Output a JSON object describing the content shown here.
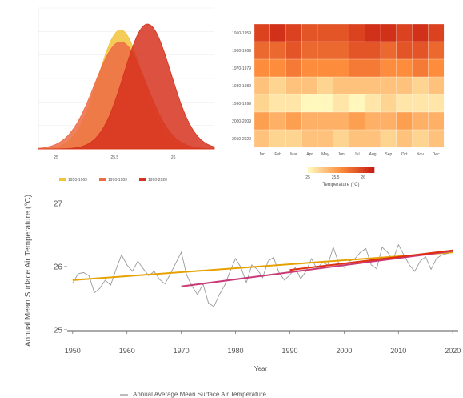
{
  "colors": {
    "low": "#fff7bc",
    "mid": "#fd8d3c",
    "high": "#c81d12",
    "trend_primary": "#e6a100",
    "trend_secondary": "#c83a78",
    "trend_recent": "#e03010",
    "series_line": "#9a9a9a"
  },
  "chart_data": [
    {
      "type": "area",
      "subtype": "density",
      "series": [
        {
          "name": "1950-1969",
          "color": "#f2c43b",
          "mean": 25.55,
          "sd": 0.19,
          "peak": 1.0
        },
        {
          "name": "1970-1989",
          "color": "#ec6b45",
          "mean": 25.55,
          "sd": 0.22,
          "peak": 0.9
        },
        {
          "name": "1990-2020",
          "color": "#d6321d",
          "mean": 25.78,
          "sd": 0.2,
          "peak": 1.05
        }
      ],
      "xlim": [
        24.85,
        26.35
      ],
      "x_ticks": [
        25,
        25.5,
        26
      ],
      "legend": "bottom"
    },
    {
      "type": "heatmap",
      "rows": [
        "1950-1959",
        "1960-1969",
        "1970-1979",
        "1980-1989",
        "1990-1999",
        "2000-2009",
        "2010-2020"
      ],
      "columns": [
        "Jan",
        "Feb",
        "Mar",
        "Apr",
        "May",
        "Jun",
        "Jul",
        "Aug",
        "Sep",
        "Oct",
        "Nov",
        "Dec"
      ],
      "values": [
        [
          26.0,
          26.1,
          26.0,
          25.9,
          25.9,
          25.9,
          26.0,
          26.1,
          26.1,
          26.0,
          26.1,
          26.0
        ],
        [
          25.8,
          25.8,
          25.9,
          25.8,
          25.8,
          25.8,
          25.9,
          25.9,
          25.8,
          25.9,
          25.9,
          25.8
        ],
        [
          25.6,
          25.6,
          25.7,
          25.6,
          25.6,
          25.6,
          25.7,
          25.7,
          25.6,
          25.6,
          25.7,
          25.6
        ],
        [
          25.3,
          25.2,
          25.3,
          25.3,
          25.2,
          25.3,
          25.3,
          25.3,
          25.3,
          25.3,
          25.2,
          25.3
        ],
        [
          25.2,
          25.1,
          25.1,
          25.0,
          25.0,
          25.1,
          25.0,
          25.1,
          25.2,
          25.1,
          25.1,
          25.1
        ],
        [
          25.5,
          25.4,
          25.5,
          25.4,
          25.4,
          25.4,
          25.5,
          25.4,
          25.4,
          25.5,
          25.4,
          25.4
        ],
        [
          25.3,
          25.2,
          25.2,
          25.3,
          25.3,
          25.2,
          25.3,
          25.3,
          25.2,
          25.3,
          25.2,
          25.3
        ]
      ],
      "colorbar_ticks": [
        25,
        25.5,
        26
      ],
      "colorbar_label": "Temperature (°C)",
      "color_range": [
        25.0,
        26.2
      ]
    },
    {
      "type": "line",
      "x": [
        1950,
        1951,
        1952,
        1953,
        1954,
        1955,
        1956,
        1957,
        1958,
        1959,
        1960,
        1961,
        1962,
        1963,
        1964,
        1965,
        1966,
        1967,
        1968,
        1969,
        1970,
        1971,
        1972,
        1973,
        1974,
        1975,
        1976,
        1977,
        1978,
        1979,
        1980,
        1981,
        1982,
        1983,
        1984,
        1985,
        1986,
        1987,
        1988,
        1989,
        1990,
        1991,
        1992,
        1993,
        1994,
        1995,
        1996,
        1997,
        1998,
        1999,
        2000,
        2001,
        2002,
        2003,
        2004,
        2005,
        2006,
        2007,
        2008,
        2009,
        2010,
        2011,
        2012,
        2013,
        2014,
        2015,
        2016,
        2017,
        2018,
        2019,
        2020
      ],
      "series": [
        {
          "name": "Annual Average Mean Surface Air Temperature",
          "values": [
            25.73,
            25.88,
            25.9,
            25.85,
            25.58,
            25.65,
            25.78,
            25.7,
            25.95,
            26.18,
            26.02,
            25.92,
            26.08,
            25.96,
            25.85,
            25.92,
            25.79,
            25.72,
            25.88,
            26.05,
            26.22,
            25.86,
            25.68,
            25.55,
            25.72,
            25.42,
            25.36,
            25.55,
            25.7,
            25.92,
            26.12,
            25.98,
            25.74,
            26.02,
            25.95,
            25.82,
            26.08,
            26.14,
            25.9,
            25.78,
            25.86,
            25.98,
            25.8,
            25.92,
            26.12,
            25.96,
            26.06,
            26.02,
            26.3,
            26.05,
            25.98,
            26.08,
            26.12,
            26.22,
            26.28,
            26.02,
            25.96,
            26.3,
            26.22,
            26.1,
            26.34,
            26.18,
            26.02,
            25.92,
            26.08,
            26.15,
            25.95,
            26.12,
            26.18,
            26.2,
            26.22
          ]
        }
      ],
      "trends": [
        {
          "x": [
            1950,
            2020
          ],
          "y": [
            25.78,
            26.22
          ],
          "color": "#e6a100"
        },
        {
          "x": [
            1970,
            2020
          ],
          "y": [
            25.68,
            26.24
          ],
          "color": "#c83a78"
        },
        {
          "x": [
            1990,
            2020
          ],
          "y": [
            25.94,
            26.25
          ],
          "color": "#e03010"
        }
      ],
      "xlabel": "Year",
      "ylabel": "Annual Mean Surface Air Temperature (°C)",
      "xlim": [
        1949,
        2021
      ],
      "ylim": [
        24.98,
        27.02
      ],
      "x_ticks": [
        1950,
        1960,
        1970,
        1980,
        1990,
        2000,
        2010,
        2020
      ],
      "y_ticks": [
        25,
        26,
        27
      ],
      "legend": "bottom"
    }
  ]
}
